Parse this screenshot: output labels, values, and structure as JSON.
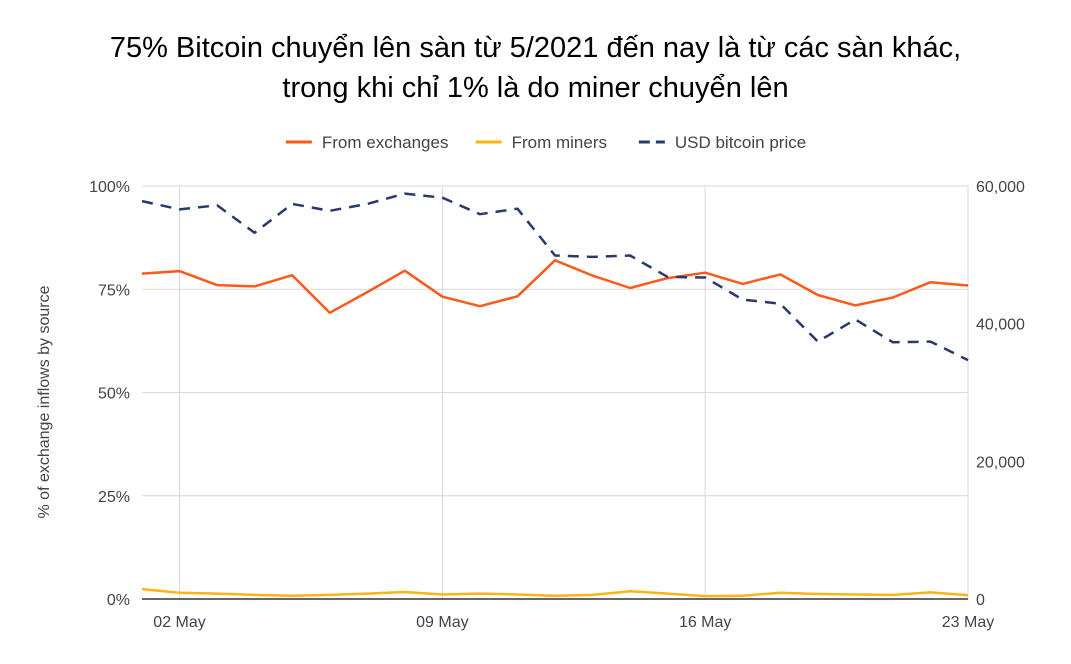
{
  "chart_data": {
    "type": "line",
    "title_lines": [
      "75% Bitcoin chuyển lên sàn từ 5/2021 đến nay là từ các sàn khác,",
      "trong khi chỉ 1% là do miner chuyển lên"
    ],
    "ylabel": "% of exchange inflows by source",
    "y2label": "",
    "ylim": [
      0,
      100
    ],
    "y2lim": [
      0,
      60000
    ],
    "y_ticks": [
      "0%",
      "25%",
      "50%",
      "75%",
      "100%"
    ],
    "y2_ticks": [
      "0",
      "20,000",
      "40,000",
      "60,000"
    ],
    "x_ticks": [
      "02 May",
      "09 May",
      "16 May",
      "23 May"
    ],
    "legend_position": "top",
    "grid": true,
    "x": [
      "2021-05-01",
      "2021-05-02",
      "2021-05-03",
      "2021-05-04",
      "2021-05-05",
      "2021-05-06",
      "2021-05-07",
      "2021-05-08",
      "2021-05-09",
      "2021-05-10",
      "2021-05-11",
      "2021-05-12",
      "2021-05-13",
      "2021-05-14",
      "2021-05-15",
      "2021-05-16",
      "2021-05-17",
      "2021-05-18",
      "2021-05-19",
      "2021-05-20",
      "2021-05-21",
      "2021-05-22",
      "2021-05-23"
    ],
    "series": [
      {
        "name": "From exchanges",
        "axis": "left",
        "color": "#fb5a1a",
        "dash": "solid",
        "values": [
          78.8,
          79.4,
          76.0,
          75.7,
          78.4,
          69.3,
          74.3,
          79.5,
          73.2,
          70.9,
          73.3,
          82.0,
          78.3,
          75.3,
          77.7,
          79.0,
          76.3,
          78.6,
          73.6,
          71.1,
          73.0,
          76.7,
          75.9
        ]
      },
      {
        "name": "From miners",
        "axis": "left",
        "color": "#fbb414",
        "dash": "solid",
        "values": [
          2.4,
          1.5,
          1.3,
          1.0,
          0.8,
          1.0,
          1.3,
          1.7,
          1.1,
          1.3,
          1.1,
          0.8,
          1.0,
          1.9,
          1.3,
          0.7,
          0.8,
          1.5,
          1.2,
          1.1,
          1.0,
          1.6,
          0.9
        ]
      },
      {
        "name": "USD bitcoin price",
        "axis": "right",
        "color": "#283a69",
        "dash": "dashed",
        "values": [
          57800,
          56600,
          57200,
          53200,
          57400,
          56400,
          57400,
          58900,
          58300,
          55900,
          56700,
          49900,
          49700,
          49900,
          46800,
          46700,
          43500,
          42900,
          37400,
          40600,
          37300,
          37400,
          34700
        ]
      }
    ]
  }
}
